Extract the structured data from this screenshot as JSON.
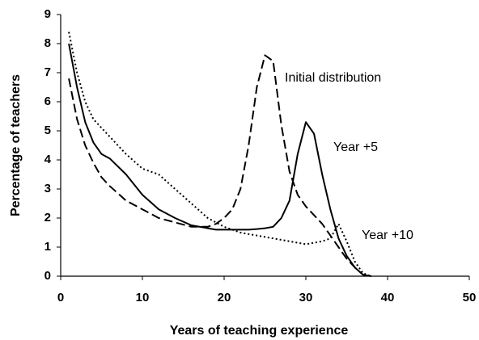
{
  "chart_data": {
    "type": "line",
    "x_label": "Years of teaching experience",
    "y_label": "Percentage of teachers",
    "x": [
      1,
      2,
      3,
      4,
      5,
      6,
      8,
      10,
      12,
      14,
      16,
      18,
      19,
      20,
      21,
      22,
      23,
      24,
      25,
      26,
      27,
      28,
      29,
      30,
      31,
      32,
      33,
      34,
      35,
      36,
      37,
      38
    ],
    "series": [
      {
        "name": "Initial distribution",
        "color": "#000000",
        "dash": "11,5",
        "values": [
          6.8,
          5.4,
          4.5,
          3.9,
          3.4,
          3.1,
          2.6,
          2.3,
          2.0,
          1.85,
          1.7,
          1.7,
          1.8,
          2.0,
          2.3,
          3.0,
          4.5,
          6.5,
          7.6,
          7.4,
          5.2,
          3.6,
          2.8,
          2.4,
          2.1,
          1.8,
          1.4,
          1.0,
          0.6,
          0.3,
          0.05,
          0
        ]
      },
      {
        "name": "Year +5",
        "color": "#000000",
        "dash": "none",
        "values": [
          8.0,
          6.5,
          5.3,
          4.6,
          4.2,
          4.05,
          3.5,
          2.8,
          2.3,
          2.0,
          1.75,
          1.65,
          1.6,
          1.6,
          1.6,
          1.6,
          1.6,
          1.62,
          1.65,
          1.7,
          2.0,
          2.6,
          4.2,
          5.3,
          4.9,
          3.5,
          2.3,
          1.3,
          0.7,
          0.3,
          0.05,
          0
        ]
      },
      {
        "name": "Year +10",
        "color": "#000000",
        "dash": "2,3",
        "values": [
          8.4,
          7.0,
          6.0,
          5.4,
          5.1,
          4.8,
          4.2,
          3.7,
          3.5,
          3.0,
          2.5,
          2.0,
          1.85,
          1.7,
          1.6,
          1.5,
          1.45,
          1.4,
          1.35,
          1.3,
          1.25,
          1.2,
          1.15,
          1.1,
          1.15,
          1.2,
          1.3,
          1.8,
          1.2,
          0.5,
          0.1,
          0
        ]
      }
    ],
    "xlim": [
      0,
      50
    ],
    "xticks": [
      0,
      10,
      20,
      30,
      40,
      50
    ],
    "ylim": [
      0,
      9
    ],
    "yticks": [
      0,
      1,
      2,
      3,
      4,
      5,
      6,
      7,
      8,
      9
    ],
    "grid": false
  }
}
